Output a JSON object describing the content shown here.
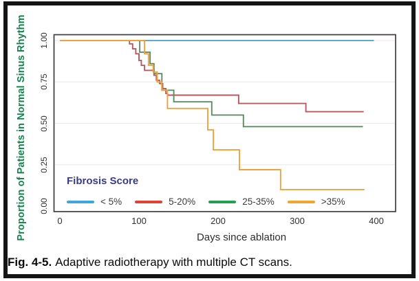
{
  "caption": {
    "label": "Fig. 4-5.",
    "text": "Adaptive radiotherapy with multiple CT scans."
  },
  "colors": {
    "y_title_green": "#15834e",
    "legend_title_navy": "#3a3a85",
    "axis_frame": "#3d3d3d",
    "gridline": "#f3e9e9",
    "tick_text": "#2e2e2e"
  },
  "chart_data": {
    "type": "line",
    "subtype": "kaplan-meier-step",
    "title": "",
    "x_axis": {
      "title": "Days since ablation",
      "ticks": [
        0,
        100,
        200,
        300,
        400
      ],
      "range": [
        0,
        425
      ]
    },
    "y_axis": {
      "title": "Proportion of Patients in Normal Sinus Rhythm",
      "tick_labels": [
        "1.00",
        "0.75",
        "0.50",
        "0.25",
        "0.00"
      ],
      "tick_values": [
        1.0,
        0.75,
        0.5,
        0.25,
        0.0
      ],
      "range": [
        0,
        1.04
      ]
    },
    "grid": "horizontal-faint",
    "legend": {
      "title": "Fibrosis Score",
      "position": "inside-bottom-left"
    },
    "series": [
      {
        "name": "< 5%",
        "curve_color": "#5ea9cf",
        "legend_color": "#3fa6dc",
        "start": [
          0,
          1.0
        ],
        "drops": [],
        "end_day": 397
      },
      {
        "name": "5-20%",
        "curve_color": "#b55a5e",
        "legend_color": "#e04335",
        "start": [
          0,
          1.0
        ],
        "drops": [
          [
            88,
            0.98
          ],
          [
            92,
            0.95
          ],
          [
            96,
            0.92
          ],
          [
            100,
            0.88
          ],
          [
            103,
            0.85
          ],
          [
            107,
            0.82
          ],
          [
            119,
            0.79
          ],
          [
            122,
            0.76
          ],
          [
            126,
            0.74
          ],
          [
            130,
            0.71
          ],
          [
            134,
            0.68
          ],
          [
            136,
            0.67
          ],
          [
            226,
            0.62
          ],
          [
            311,
            0.57
          ]
        ],
        "end_day": 384
      },
      {
        "name": "25-35%",
        "curve_color": "#5c8d62",
        "legend_color": "#23a04f",
        "start": [
          0,
          1.0
        ],
        "drops": [
          [
            101,
            0.93
          ],
          [
            114,
            0.86
          ],
          [
            119,
            0.8
          ],
          [
            129,
            0.7
          ],
          [
            144,
            0.63
          ],
          [
            192,
            0.55
          ],
          [
            232,
            0.48
          ]
        ],
        "end_day": 383
      },
      {
        "name": ">35%",
        "curve_color": "#f0a13e",
        "legend_color": "#f3a52e",
        "start": [
          0,
          1.0
        ],
        "drops": [
          [
            107,
            0.92
          ],
          [
            112,
            0.85
          ],
          [
            118,
            0.81
          ],
          [
            123,
            0.75
          ],
          [
            129,
            0.7
          ],
          [
            136,
            0.59
          ],
          [
            187,
            0.46
          ],
          [
            194,
            0.34
          ],
          [
            227,
            0.22
          ],
          [
            279,
            0.1
          ]
        ],
        "end_day": 385
      }
    ]
  }
}
